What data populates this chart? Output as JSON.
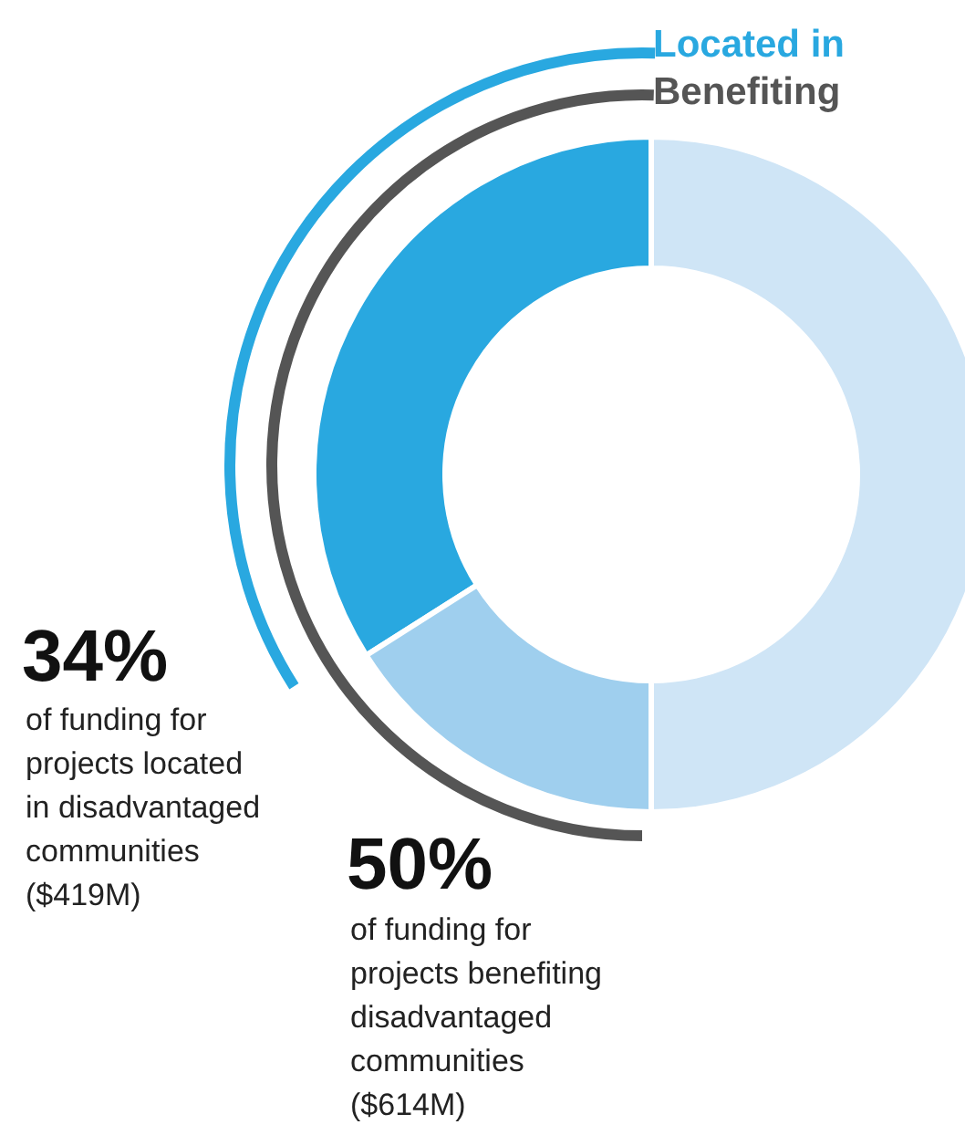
{
  "chart_data": {
    "type": "donut",
    "categories": [
      null,
      null,
      null
    ],
    "values": [
      34,
      16,
      50
    ],
    "colors": [
      "#29a8e0",
      "#9fcfee",
      "#cfe5f6"
    ],
    "legend": false,
    "annotations": [
      "Located in",
      "Benefiting",
      "34%",
      "of funding for\nprojects located\nin disadvantaged\ncommunities\n($419M)",
      "50%",
      "of funding for\nprojects benefiting\ndisadvantaged\ncommunities\n($614M)"
    ]
  }
}
